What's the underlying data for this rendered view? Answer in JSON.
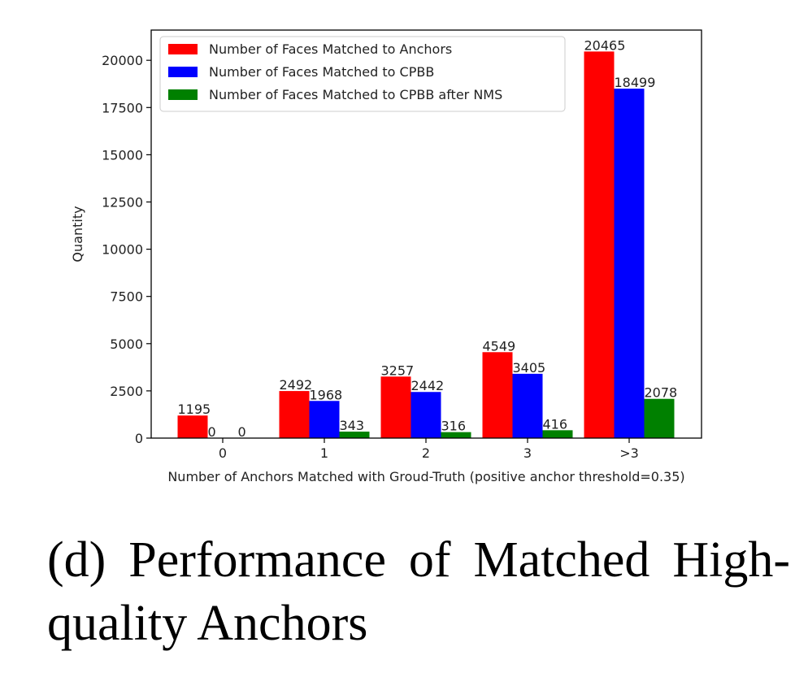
{
  "chart_data": {
    "type": "bar",
    "categories": [
      "0",
      "1",
      "2",
      "3",
      ">3"
    ],
    "series": [
      {
        "name": "Number of Faces Matched to Anchors",
        "color": "#ff0000",
        "values": [
          1195,
          2492,
          3257,
          4549,
          20465
        ]
      },
      {
        "name": "Number of Faces Matched to CPBB",
        "color": "#0000ff",
        "values": [
          0,
          1968,
          2442,
          3405,
          18499
        ]
      },
      {
        "name": "Number of Faces Matched to CPBB after NMS",
        "color": "#008000",
        "values": [
          0,
          343,
          316,
          416,
          2078
        ]
      }
    ],
    "data_labels": [
      [
        "1195",
        "0",
        "0"
      ],
      [
        "2492",
        "1968",
        "343"
      ],
      [
        "3257",
        "2442",
        "316"
      ],
      [
        "4549",
        "3405",
        "416"
      ],
      [
        "20465",
        "18499",
        "2078"
      ]
    ],
    "xlabel": "Number of Anchors Matched with Groud-Truth (positive anchor threshold=0.35)",
    "ylabel": "Quantity",
    "ylim": [
      0,
      21600
    ],
    "yticks": [
      0,
      2500,
      5000,
      7500,
      10000,
      12500,
      15000,
      17500,
      20000
    ],
    "grid": false,
    "legend_position": "upper-left"
  },
  "caption": "(d) Performance of Matched High-quality Anchors"
}
